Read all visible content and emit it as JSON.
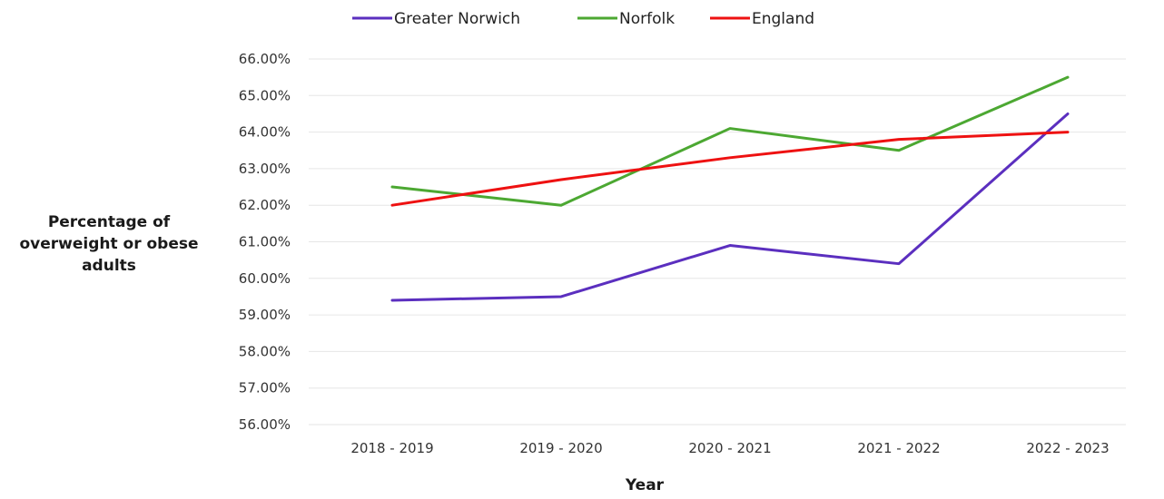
{
  "chart_data": {
    "type": "line",
    "categories": [
      "2018 - 2019",
      "2019 - 2020",
      "2020 - 2021",
      "2021 - 2022",
      "2022 - 2023"
    ],
    "series": [
      {
        "name": "Greater Norwich",
        "color": "#5b2fbf",
        "values": [
          59.4,
          59.5,
          60.9,
          60.4,
          64.5
        ]
      },
      {
        "name": "Norfolk",
        "color": "#4ca832",
        "values": [
          62.5,
          62.0,
          64.1,
          63.5,
          65.5
        ]
      },
      {
        "name": "England",
        "color": "#ee1111",
        "values": [
          62.0,
          62.7,
          63.3,
          63.8,
          64.0
        ]
      }
    ],
    "ylim": [
      56,
      66
    ],
    "y_ticks": [
      "56.00%",
      "57.00%",
      "58.00%",
      "59.00%",
      "60.00%",
      "61.00%",
      "62.00%",
      "63.00%",
      "64.00%",
      "65.00%",
      "66.00%"
    ],
    "xlabel": "Year",
    "ylabel": "Percentage of overweight or obese adults",
    "grid": "horizontal",
    "legend_position": "top"
  }
}
